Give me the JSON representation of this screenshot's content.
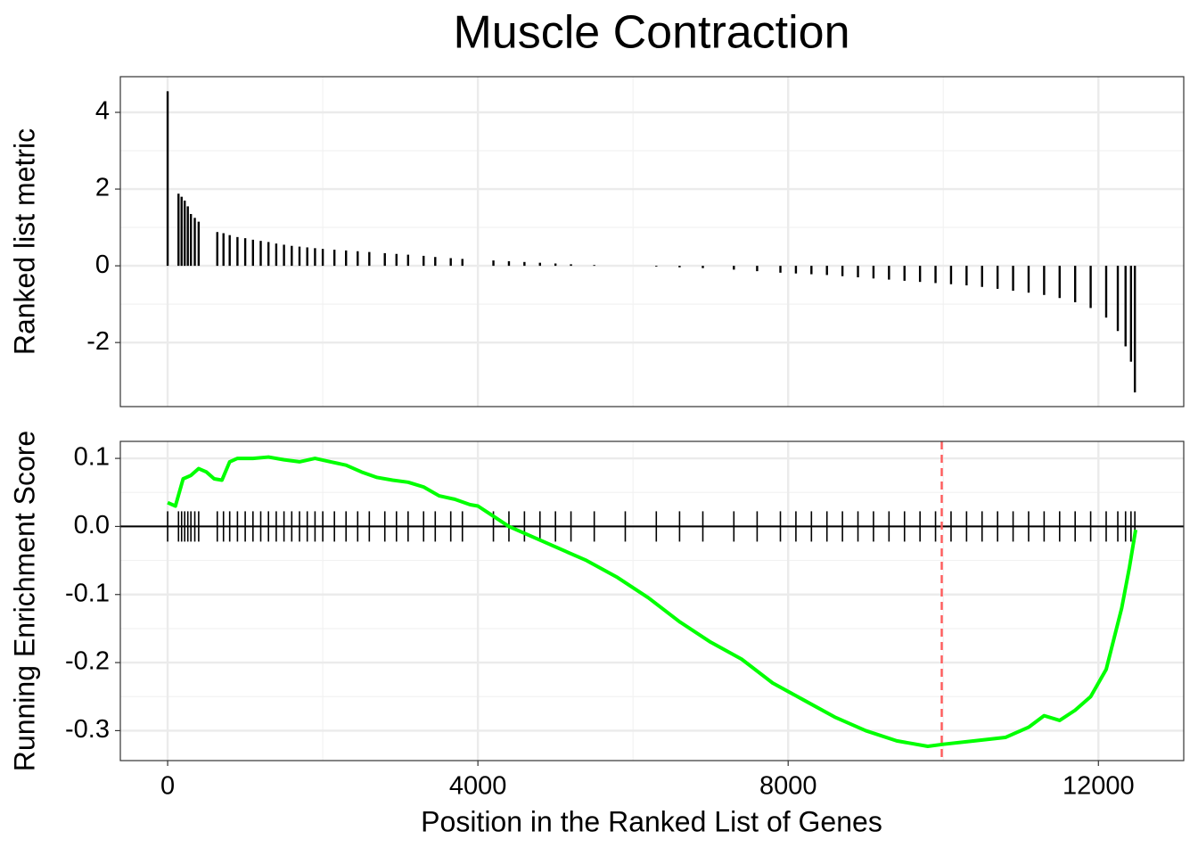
{
  "title": "Muscle Contraction",
  "xlabel": "Position in the Ranked List of Genes",
  "chart_data": [
    {
      "type": "bar",
      "ylabel": "Ranked list metric",
      "color": "#000000",
      "grid": true,
      "xlim": [
        -610,
        13100
      ],
      "ylim": [
        -3.67,
        4.93
      ],
      "yticks": [
        -2,
        0,
        2,
        4
      ],
      "x": [
        0,
        140,
        180,
        220,
        260,
        300,
        350,
        400,
        640,
        720,
        800,
        900,
        1000,
        1100,
        1200,
        1300,
        1400,
        1500,
        1600,
        1700,
        1800,
        1900,
        2000,
        2150,
        2300,
        2450,
        2600,
        2800,
        2950,
        3100,
        3300,
        3450,
        3650,
        3800,
        4200,
        4400,
        4600,
        4800,
        5000,
        5200,
        5500,
        5900,
        6300,
        6600,
        6900,
        7300,
        7600,
        7900,
        8100,
        8300,
        8500,
        8700,
        8900,
        9100,
        9300,
        9500,
        9700,
        9900,
        10100,
        10300,
        10500,
        10700,
        10900,
        11100,
        11300,
        11500,
        11700,
        11900,
        12100,
        12250,
        12350,
        12420,
        12470
      ],
      "values": [
        4.55,
        1.88,
        1.8,
        1.7,
        1.55,
        1.35,
        1.25,
        1.15,
        0.88,
        0.85,
        0.8,
        0.75,
        0.72,
        0.68,
        0.65,
        0.62,
        0.58,
        0.55,
        0.52,
        0.5,
        0.48,
        0.46,
        0.44,
        0.42,
        0.4,
        0.38,
        0.36,
        0.33,
        0.31,
        0.29,
        0.26,
        0.23,
        0.2,
        0.18,
        0.14,
        0.12,
        0.1,
        0.08,
        0.06,
        0.04,
        0.02,
        0,
        -0.02,
        -0.04,
        -0.06,
        -0.1,
        -0.14,
        -0.18,
        -0.2,
        -0.22,
        -0.24,
        -0.27,
        -0.3,
        -0.33,
        -0.36,
        -0.39,
        -0.42,
        -0.45,
        -0.48,
        -0.51,
        -0.55,
        -0.6,
        -0.65,
        -0.7,
        -0.76,
        -0.84,
        -0.95,
        -1.1,
        -1.35,
        -1.7,
        -2.1,
        -2.5,
        -3.3
      ]
    },
    {
      "type": "line",
      "ylabel": "Running Enrichment Score",
      "grid": true,
      "xlim": [
        -610,
        13100
      ],
      "ylim": [
        -0.344,
        0.125
      ],
      "xticks": [
        0,
        4000,
        8000,
        12000
      ],
      "yticks": [
        -0.3,
        -0.2,
        -0.1,
        {
          "value": 0,
          "label": "0.0"
        },
        0.1
      ],
      "vline": 9980,
      "vline_color": "#ff5a5a",
      "hit_color": "#000000",
      "series": [
        {
          "color": "#00ff00",
          "x": [
            0,
            100,
            200,
            300,
            400,
            500,
            600,
            700,
            800,
            900,
            1100,
            1300,
            1500,
            1700,
            1900,
            2100,
            2300,
            2500,
            2700,
            2900,
            3100,
            3300,
            3500,
            3700,
            3900,
            4000,
            4200,
            4400,
            4600,
            5000,
            5400,
            5800,
            6200,
            6600,
            7000,
            7400,
            7800,
            8200,
            8600,
            9000,
            9400,
            9800,
            10000,
            10400,
            10800,
            11100,
            11300,
            11500,
            11700,
            11900,
            12100,
            12200,
            12300,
            12400,
            12480
          ],
          "values": [
            0.035,
            0.03,
            0.07,
            0.075,
            0.085,
            0.08,
            0.07,
            0.068,
            0.095,
            0.1,
            0.1,
            0.102,
            0.098,
            0.095,
            0.1,
            0.095,
            0.09,
            0.08,
            0.072,
            0.068,
            0.065,
            0.058,
            0.045,
            0.04,
            0.032,
            0.03,
            0.015,
            0,
            -0.01,
            -0.03,
            -0.05,
            -0.075,
            -0.105,
            -0.14,
            -0.17,
            -0.195,
            -0.23,
            -0.255,
            -0.28,
            -0.3,
            -0.315,
            -0.323,
            -0.32,
            -0.315,
            -0.31,
            -0.295,
            -0.278,
            -0.285,
            -0.27,
            -0.25,
            -0.21,
            -0.165,
            -0.12,
            -0.06,
            -0.005
          ]
        }
      ]
    }
  ]
}
